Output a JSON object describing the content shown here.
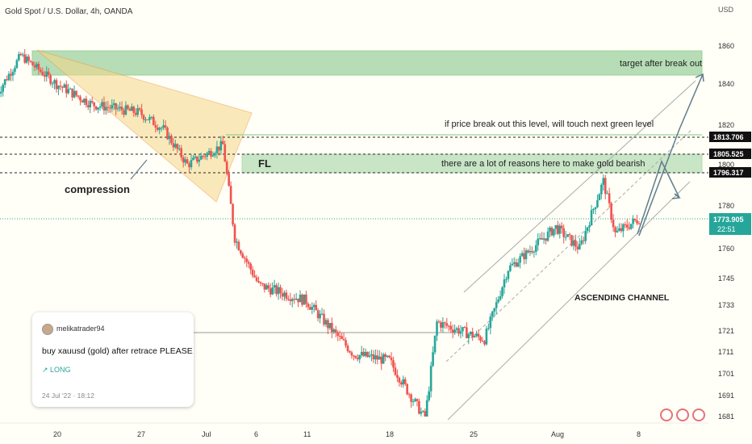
{
  "chart_data": {
    "type": "candlestick",
    "title": "Gold Spot / U.S. Dollar, 4h, OANDA",
    "currency": "USD",
    "y_ticks": [
      1860.0,
      1840.0,
      1820.0,
      1800.0,
      1780.0,
      1760.0,
      1745.0,
      1733.0,
      1721.0,
      1711.0,
      1701.0,
      1691.0,
      1681.0
    ],
    "x_ticks": [
      "20",
      "27",
      "Jul",
      "6",
      "11",
      "18",
      "25",
      "Aug",
      "8"
    ],
    "price_levels": [
      {
        "label": "1813.706",
        "value": 1813.706
      },
      {
        "label": "1805.525",
        "value": 1805.525
      },
      {
        "label": "1796.317",
        "value": 1796.317
      }
    ],
    "last_price": {
      "label": "1773.905",
      "value": 1773.905,
      "countdown": "22:51"
    },
    "trend": [
      {
        "t": "Jun 15",
        "p": 1835
      },
      {
        "t": "Jun 17",
        "p": 1855
      },
      {
        "t": "Jun 20",
        "p": 1840
      },
      {
        "t": "Jun 23",
        "p": 1830
      },
      {
        "t": "Jun 27",
        "p": 1826
      },
      {
        "t": "Jun 29",
        "p": 1818
      },
      {
        "t": "Jul 1",
        "p": 1800
      },
      {
        "t": "Jul 4",
        "p": 1810
      },
      {
        "t": "Jul 5",
        "p": 1765
      },
      {
        "t": "Jul 7",
        "p": 1742
      },
      {
        "t": "Jul 11",
        "p": 1735
      },
      {
        "t": "Jul 15",
        "p": 1710
      },
      {
        "t": "Jul 18",
        "p": 1707
      },
      {
        "t": "Jul 21",
        "p": 1680
      },
      {
        "t": "Jul 22",
        "p": 1725
      },
      {
        "t": "Jul 26",
        "p": 1717
      },
      {
        "t": "Jul 28",
        "p": 1750
      },
      {
        "t": "Aug 1",
        "p": 1770
      },
      {
        "t": "Aug 3",
        "p": 1760
      },
      {
        "t": "Aug 5",
        "p": 1792
      },
      {
        "t": "Aug 6",
        "p": 1767
      },
      {
        "t": "Aug 8",
        "p": 1774
      }
    ],
    "annotations": {
      "target": "target after break out",
      "breakout": "if price break out this level, will touch next green level",
      "bearish": "there are a lot of reasons here to make gold bearish",
      "fl": "FL",
      "compression": "compression",
      "channel": "ASCENDING CHANNEL"
    }
  },
  "idea_card": {
    "username": "melikatrader94",
    "message": "buy xauusd (gold) after retrace PLEASE",
    "direction": "↗ LONG",
    "date": "24 Jul '22 · 18:12"
  },
  "colors": {
    "up": "#26a69a",
    "down": "#ef5350",
    "zone": "#a5d6a7",
    "wedge": "#f5d98a",
    "last_price": "#26a69a"
  }
}
